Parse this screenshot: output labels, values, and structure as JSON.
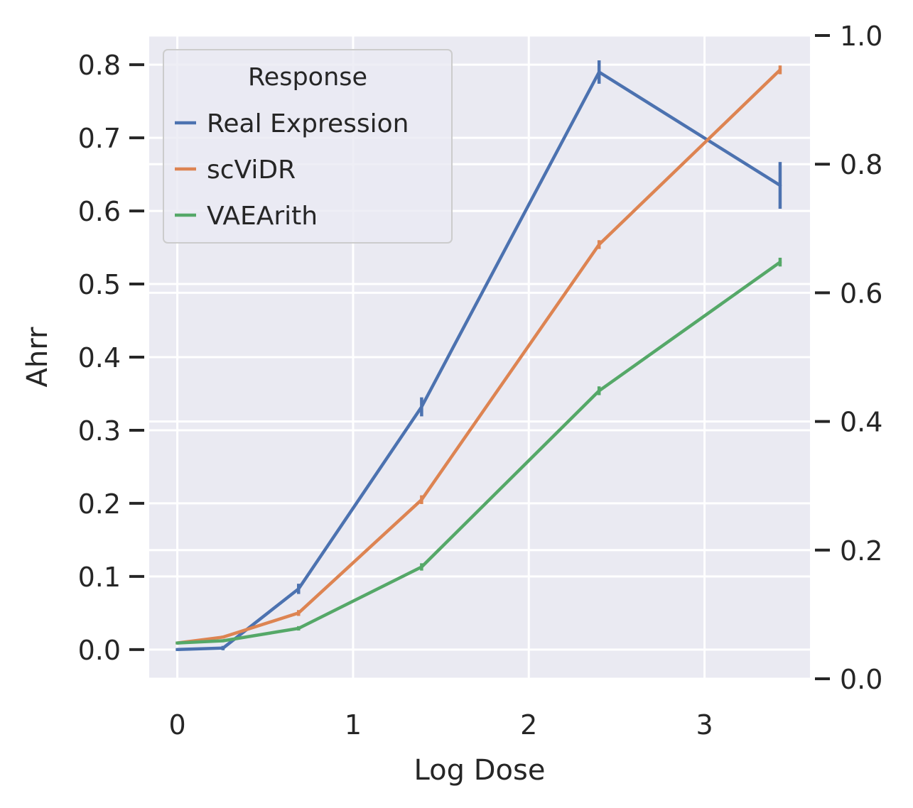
{
  "chart_data": {
    "type": "line",
    "xlabel": "Log Dose",
    "ylabel": "Ahrr",
    "xlim": [
      -0.16,
      3.6
    ],
    "ylim": [
      -0.04,
      0.84
    ],
    "x_ticks": [
      0,
      1,
      2,
      3
    ],
    "y_ticks": [
      0.0,
      0.1,
      0.2,
      0.3,
      0.4,
      0.5,
      0.6,
      0.7,
      0.8
    ],
    "y2lim": [
      0.0,
      1.0
    ],
    "y2_ticks": [
      0.0,
      0.2,
      0.4,
      0.6,
      0.8,
      1.0
    ],
    "grid": true,
    "legend": {
      "title": "Response",
      "placement": "top-left"
    },
    "series": [
      {
        "name": "Real Expression",
        "color": "#4c72b0",
        "x": [
          0.0,
          0.26,
          0.69,
          1.39,
          2.4,
          3.43
        ],
        "y": [
          0.0,
          0.002,
          0.083,
          0.332,
          0.79,
          0.635
        ],
        "err": [
          0.002,
          0.003,
          0.007,
          0.013,
          0.016,
          0.032
        ]
      },
      {
        "name": "scViDR",
        "color": "#dd8452",
        "x": [
          0.0,
          0.26,
          0.69,
          1.39,
          2.4,
          3.43
        ],
        "y": [
          0.009,
          0.017,
          0.05,
          0.205,
          0.554,
          0.793
        ],
        "err": [
          0.002,
          0.002,
          0.004,
          0.006,
          0.006,
          0.006
        ]
      },
      {
        "name": "VAEArith",
        "color": "#55a868",
        "x": [
          0.0,
          0.26,
          0.69,
          1.39,
          2.4,
          3.43
        ],
        "y": [
          0.009,
          0.012,
          0.029,
          0.113,
          0.354,
          0.53
        ],
        "err": [
          0.002,
          0.002,
          0.003,
          0.005,
          0.006,
          0.006
        ]
      }
    ]
  }
}
